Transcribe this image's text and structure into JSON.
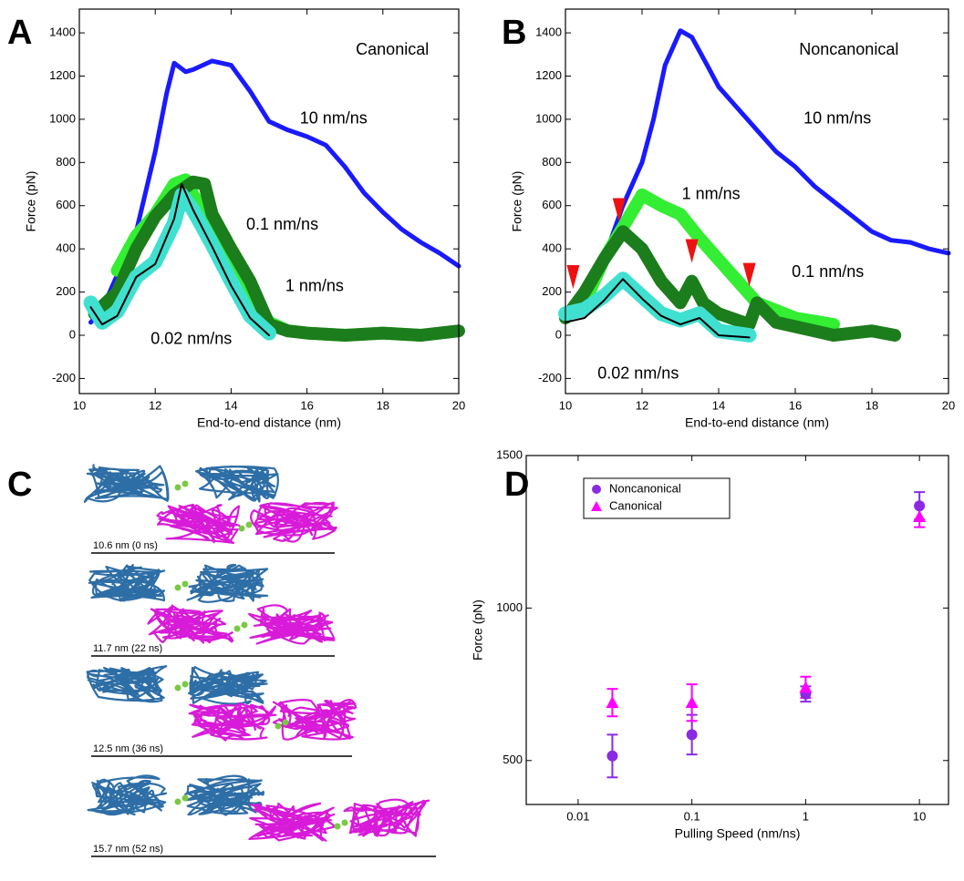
{
  "chart_data": [
    {
      "type": "line",
      "panel_label": "A",
      "title": "Canonical",
      "xlabel": "End-to-end distance (nm)",
      "ylabel": "Force (pN)",
      "xlim": [
        10,
        20
      ],
      "ylim": [
        -270,
        1510
      ],
      "xticks": [
        10,
        12,
        14,
        16,
        18,
        20
      ],
      "yticks": [
        -200,
        0,
        200,
        400,
        600,
        800,
        1000,
        1200,
        1400
      ],
      "series": [
        {
          "name": "10 nm/ns",
          "color": "#1a1aff",
          "x": [
            10.3,
            10.6,
            11,
            11.5,
            12,
            12.3,
            12.5,
            12.8,
            13,
            13.5,
            14,
            14.5,
            15,
            15.5,
            16,
            16.5,
            17,
            17.5,
            18,
            18.5,
            19,
            19.5,
            20
          ],
          "values": [
            60,
            120,
            280,
            480,
            850,
            1120,
            1260,
            1220,
            1230,
            1270,
            1250,
            1130,
            990,
            950,
            920,
            880,
            780,
            660,
            570,
            490,
            430,
            380,
            320
          ]
        },
        {
          "name": "1 nm/ns",
          "color": "#33ee33",
          "x": [
            11,
            11.5,
            12,
            12.5,
            12.8,
            13,
            13.5,
            14,
            14.5,
            15,
            15.5,
            16,
            17,
            18,
            19
          ],
          "values": [
            300,
            460,
            560,
            700,
            720,
            650,
            500,
            350,
            200,
            60,
            20,
            10,
            0,
            10,
            0
          ]
        },
        {
          "name": "0.1 nm/ns",
          "color": "#1b7d1b",
          "x": [
            10.4,
            11,
            11.5,
            12,
            12.5,
            13,
            13.3,
            13.5,
            14,
            14.5,
            15,
            15.5,
            16,
            17,
            18,
            19,
            20
          ],
          "values": [
            100,
            200,
            400,
            550,
            650,
            710,
            700,
            560,
            400,
            250,
            50,
            20,
            10,
            0,
            10,
            0,
            20
          ]
        },
        {
          "name": "0.02 nm/ns",
          "color": "#40e0d0",
          "x": [
            10.3,
            10.6,
            11,
            11.5,
            12,
            12.5,
            12.7,
            13,
            13.5,
            14,
            14.5,
            15
          ],
          "values": [
            150,
            60,
            110,
            270,
            340,
            520,
            650,
            580,
            420,
            250,
            90,
            10
          ]
        },
        {
          "color": "#000000",
          "x": [
            10.3,
            10.6,
            11,
            11.5,
            12,
            12.5,
            12.7,
            13,
            13.5,
            14,
            14.5,
            15
          ],
          "values": [
            130,
            50,
            90,
            270,
            330,
            540,
            700,
            580,
            410,
            230,
            80,
            0
          ]
        }
      ]
    },
    {
      "type": "line",
      "panel_label": "B",
      "title": "Noncanonical",
      "xlabel": "End-to-end distance (nm)",
      "ylabel": "Force (pN)",
      "xlim": [
        10,
        20
      ],
      "ylim": [
        -270,
        1510
      ],
      "xticks": [
        10,
        12,
        14,
        16,
        18,
        20
      ],
      "yticks": [
        -200,
        0,
        200,
        400,
        600,
        800,
        1000,
        1200,
        1400
      ],
      "series": [
        {
          "name": "10 nm/ns",
          "color": "#1a1aff",
          "x": [
            10.5,
            11,
            11.5,
            12,
            12.3,
            12.6,
            13,
            13.3,
            13.7,
            14,
            14.5,
            15,
            15.5,
            16,
            16.5,
            17,
            17.5,
            18,
            18.5,
            19,
            19.5,
            20
          ],
          "values": [
            180,
            350,
            600,
            800,
            1000,
            1250,
            1410,
            1380,
            1250,
            1150,
            1050,
            950,
            850,
            780,
            690,
            620,
            550,
            480,
            440,
            430,
            400,
            380
          ]
        },
        {
          "name": "1 nm/ns",
          "color": "#33ee33",
          "x": [
            10.5,
            11,
            11.5,
            12,
            12.5,
            13,
            13.5,
            14,
            14.5,
            15,
            16,
            17
          ],
          "values": [
            150,
            350,
            500,
            650,
            600,
            560,
            450,
            350,
            250,
            150,
            80,
            50
          ]
        },
        {
          "name": "0.1 nm/ns",
          "color": "#1b7d1b",
          "x": [
            10,
            10.5,
            11,
            11.5,
            12,
            12.5,
            13,
            13.3,
            13.6,
            14,
            14.8,
            15,
            15.5,
            16,
            17,
            18,
            18.6
          ],
          "values": [
            80,
            200,
            350,
            480,
            400,
            250,
            150,
            250,
            150,
            100,
            50,
            150,
            60,
            40,
            0,
            20,
            0
          ]
        },
        {
          "name": "0.02 nm/ns",
          "color": "#40e0d0",
          "x": [
            10,
            10.5,
            11,
            11.5,
            12,
            12.5,
            13,
            13.5,
            14,
            14.8
          ],
          "values": [
            100,
            120,
            180,
            260,
            180,
            100,
            70,
            100,
            20,
            0
          ]
        },
        {
          "color": "#000000",
          "x": [
            10,
            10.5,
            11,
            11.5,
            12,
            12.5,
            13,
            13.5,
            14,
            14.8
          ],
          "values": [
            60,
            80,
            160,
            260,
            170,
            90,
            50,
            80,
            0,
            -10
          ]
        }
      ],
      "markers": {
        "color": "#ee1111",
        "x": [
          10.2,
          11.4,
          13.3,
          14.8
        ],
        "values": [
          270,
          580,
          390,
          280
        ]
      }
    },
    {
      "type": "scatter",
      "panel_label": "D",
      "xlabel": "Pulling Speed (nm/ns)",
      "ylabel": "Force (pN)",
      "log_x": true,
      "legend": "upper left",
      "xlim": [
        0.0035,
        18
      ],
      "ylim": [
        356,
        1500
      ],
      "xticks": [
        0.01,
        0.1,
        1,
        10
      ],
      "yticks": [
        500,
        1000,
        1500
      ],
      "series": [
        {
          "name": "Noncanonical",
          "color": "#8a2be2",
          "marker": "circle",
          "x": [
            0.02,
            0.1,
            1,
            10
          ],
          "values": [
            515,
            585,
            718,
            1335
          ],
          "errors": [
            70,
            65,
            25,
            45
          ]
        },
        {
          "name": "Canonical",
          "color": "#ff00ff",
          "marker": "triangle",
          "x": [
            0.02,
            0.1,
            1,
            10
          ],
          "values": [
            690,
            690,
            740,
            1300
          ],
          "errors": [
            45,
            60,
            35,
            35
          ]
        }
      ]
    }
  ],
  "structures": {
    "panel_label": "C",
    "snapshots": [
      "10.6 nm (0 ns)",
      "11.7 nm (22 ns)",
      "12.5 nm (36 ns)",
      "15.7 nm (52 ns)"
    ]
  }
}
